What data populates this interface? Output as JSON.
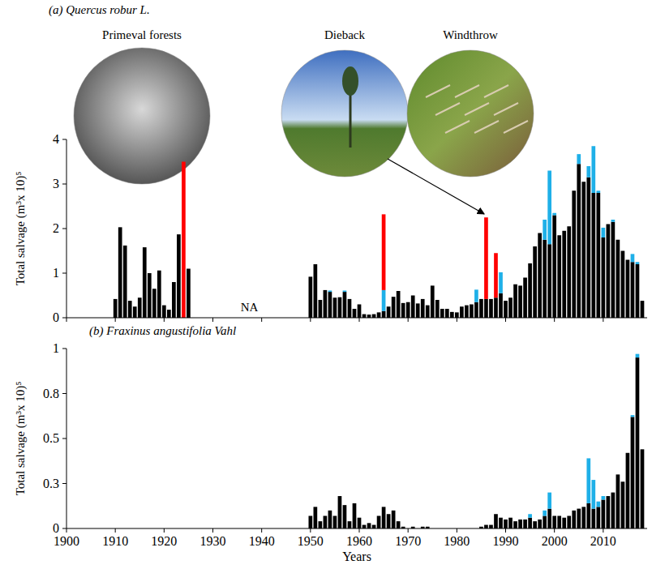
{
  "chart_data": [
    {
      "type": "bar",
      "title": "(a) Quercus robur L.",
      "y_label": "Total salvage (m³x 10)⁵",
      "stacked": true,
      "tick_labels": "y",
      "annotations": [
        "NA",
        "Primeval forests",
        "Dieback",
        "Windthrow"
      ],
      "x": [
        1910,
        1911,
        1912,
        1913,
        1914,
        1915,
        1916,
        1917,
        1918,
        1919,
        1920,
        1921,
        1922,
        1923,
        1924,
        1925,
        1950,
        1951,
        1952,
        1953,
        1954,
        1955,
        1956,
        1957,
        1958,
        1959,
        1960,
        1961,
        1962,
        1963,
        1964,
        1965,
        1966,
        1967,
        1968,
        1969,
        1970,
        1971,
        1972,
        1973,
        1974,
        1975,
        1976,
        1977,
        1978,
        1979,
        1980,
        1981,
        1982,
        1983,
        1984,
        1985,
        1986,
        1987,
        1988,
        1989,
        1990,
        1991,
        1992,
        1993,
        1994,
        1995,
        1996,
        1997,
        1998,
        1999,
        2000,
        2001,
        2002,
        2003,
        2004,
        2005,
        2006,
        2007,
        2008,
        2009,
        2010,
        2011,
        2012,
        2013,
        2014,
        2015,
        2016,
        2017,
        2018
      ],
      "series": [
        {
          "color": "#000000",
          "values": [
            0.42,
            2.03,
            1.62,
            0.38,
            0.25,
            0.45,
            1.58,
            1.0,
            0.65,
            1.06,
            0.28,
            0.18,
            0.8,
            1.87,
            0,
            1.1,
            0.92,
            1.2,
            0.4,
            0.62,
            0.58,
            0.45,
            0.46,
            0.58,
            0.42,
            0.2,
            0.3,
            0.08,
            0.07,
            0.08,
            0.12,
            0.15,
            0.25,
            0.47,
            0.6,
            0.33,
            0.35,
            0.5,
            0.32,
            0.42,
            0.28,
            0.72,
            0.4,
            0.2,
            0.2,
            0.13,
            0.12,
            0.25,
            0.28,
            0.3,
            0.35,
            0.42,
            0.42,
            0.42,
            0.45,
            0.55,
            0.38,
            0.45,
            0.75,
            0.72,
            0.9,
            1.22,
            1.6,
            1.9,
            1.75,
            1.65,
            2.3,
            1.85,
            1.95,
            2.05,
            2.85,
            3.45,
            3.05,
            3.15,
            2.8,
            2.8,
            1.8,
            2.1,
            2.15,
            1.75,
            1.5,
            1.3,
            1.25,
            1.2,
            0.38
          ]
        },
        {
          "color": "#1fb0e8",
          "values": [
            0,
            0,
            0,
            0,
            0,
            0,
            0,
            0,
            0,
            0,
            0,
            0,
            0,
            0,
            0,
            0,
            0,
            0,
            0,
            0,
            0.03,
            0,
            0,
            0.03,
            0,
            0,
            0,
            0,
            0,
            0,
            0,
            0.47,
            0,
            0,
            0,
            0,
            0,
            0,
            0,
            0,
            0,
            0,
            0,
            0,
            0,
            0,
            0,
            0,
            0,
            0,
            0.28,
            0,
            0,
            0,
            0,
            0.47,
            0,
            0,
            0,
            0,
            0,
            0,
            0,
            0,
            0.45,
            1.65,
            0.05,
            0,
            0,
            0,
            0,
            0.22,
            0,
            0.25,
            1.05,
            0.05,
            0.22,
            0,
            0.05,
            0,
            0,
            0,
            0.18,
            0.05,
            0
          ]
        },
        {
          "color": "#ff0000",
          "values": [
            0,
            0,
            0,
            0,
            0,
            0,
            0,
            0,
            0,
            0,
            0,
            0,
            0,
            0,
            3.5,
            0,
            0,
            0,
            0,
            0,
            0,
            0,
            0,
            0,
            0,
            0,
            0,
            0,
            0,
            0,
            0,
            1.7,
            0,
            0,
            0,
            0,
            0,
            0,
            0,
            0,
            0,
            0,
            0,
            0,
            0,
            0,
            0,
            0,
            0,
            0,
            0,
            0,
            1.83,
            0,
            1.0,
            0,
            0,
            0,
            0,
            0,
            0,
            0,
            0,
            0,
            0,
            0,
            0,
            0,
            0,
            0,
            0,
            0,
            0,
            0,
            0,
            0,
            0,
            0,
            0,
            0,
            0,
            0,
            0,
            0,
            0
          ]
        }
      ],
      "xlim": [
        1900,
        2019
      ],
      "xticks": [
        1900,
        1910,
        1920,
        1930,
        1940,
        1950,
        1960,
        1970,
        1980,
        1990,
        2000,
        2010
      ],
      "ylim": [
        0,
        4
      ],
      "yticks": [
        0,
        1,
        2,
        3,
        4
      ]
    },
    {
      "type": "bar",
      "title": "(b) Fraxinus angustifolia Vahl",
      "x_label": "Years",
      "y_label": "Total salvage (m³x 10)⁵",
      "stacked": true,
      "x": [
        1950,
        1951,
        1952,
        1953,
        1954,
        1955,
        1956,
        1957,
        1958,
        1959,
        1960,
        1961,
        1962,
        1963,
        1964,
        1965,
        1966,
        1967,
        1968,
        1969,
        1970,
        1971,
        1972,
        1973,
        1974,
        1975,
        1976,
        1977,
        1978,
        1979,
        1980,
        1981,
        1982,
        1983,
        1984,
        1985,
        1986,
        1987,
        1988,
        1989,
        1990,
        1991,
        1992,
        1993,
        1994,
        1995,
        1996,
        1997,
        1998,
        1999,
        2000,
        2001,
        2002,
        2003,
        2004,
        2005,
        2006,
        2007,
        2008,
        2009,
        2010,
        2011,
        2012,
        2013,
        2014,
        2015,
        2016,
        2017,
        2018
      ],
      "series": [
        {
          "color": "#000000",
          "values": [
            0.07,
            0.12,
            0.04,
            0.07,
            0.1,
            0.07,
            0.18,
            0.13,
            0.04,
            0.14,
            0.06,
            0.02,
            0.03,
            0.02,
            0.07,
            0.12,
            0.08,
            0.1,
            0.04,
            0.01,
            0,
            0.01,
            0,
            0.01,
            0.01,
            0,
            0,
            0,
            0,
            0,
            0,
            0,
            0,
            0,
            0,
            0.01,
            0.02,
            0.02,
            0.08,
            0.06,
            0.05,
            0.06,
            0.04,
            0.05,
            0.05,
            0.06,
            0.04,
            0.05,
            0.07,
            0.11,
            0.07,
            0.07,
            0.06,
            0.07,
            0.1,
            0.11,
            0.12,
            0.14,
            0.11,
            0.12,
            0.16,
            0.18,
            0.2,
            0.3,
            0.26,
            0.42,
            0.62,
            0.95,
            0.44
          ]
        },
        {
          "color": "#1fb0e8",
          "values": [
            0,
            0,
            0,
            0,
            0,
            0,
            0,
            0,
            0,
            0,
            0,
            0,
            0,
            0,
            0,
            0,
            0,
            0,
            0,
            0,
            0,
            0,
            0,
            0,
            0,
            0,
            0,
            0,
            0,
            0,
            0,
            0,
            0,
            0,
            0,
            0,
            0,
            0,
            0,
            0,
            0,
            0,
            0,
            0,
            0,
            0.02,
            0,
            0,
            0.03,
            0.09,
            0,
            0,
            0,
            0,
            0,
            0,
            0,
            0.25,
            0.16,
            0.03,
            0.02,
            0,
            0,
            0,
            0,
            0,
            0.01,
            0.02,
            0
          ]
        }
      ],
      "xlim": [
        1900,
        2019
      ],
      "xticks": [
        1900,
        1910,
        1920,
        1930,
        1940,
        1950,
        1960,
        1970,
        1980,
        1990,
        2000,
        2010
      ],
      "ylim": [
        0,
        1
      ],
      "yticks": [
        0,
        {
          "value": 0.25,
          "label": "0.3"
        },
        0.5,
        {
          "value": 0.75,
          "label": "0.8"
        },
        1
      ]
    }
  ]
}
